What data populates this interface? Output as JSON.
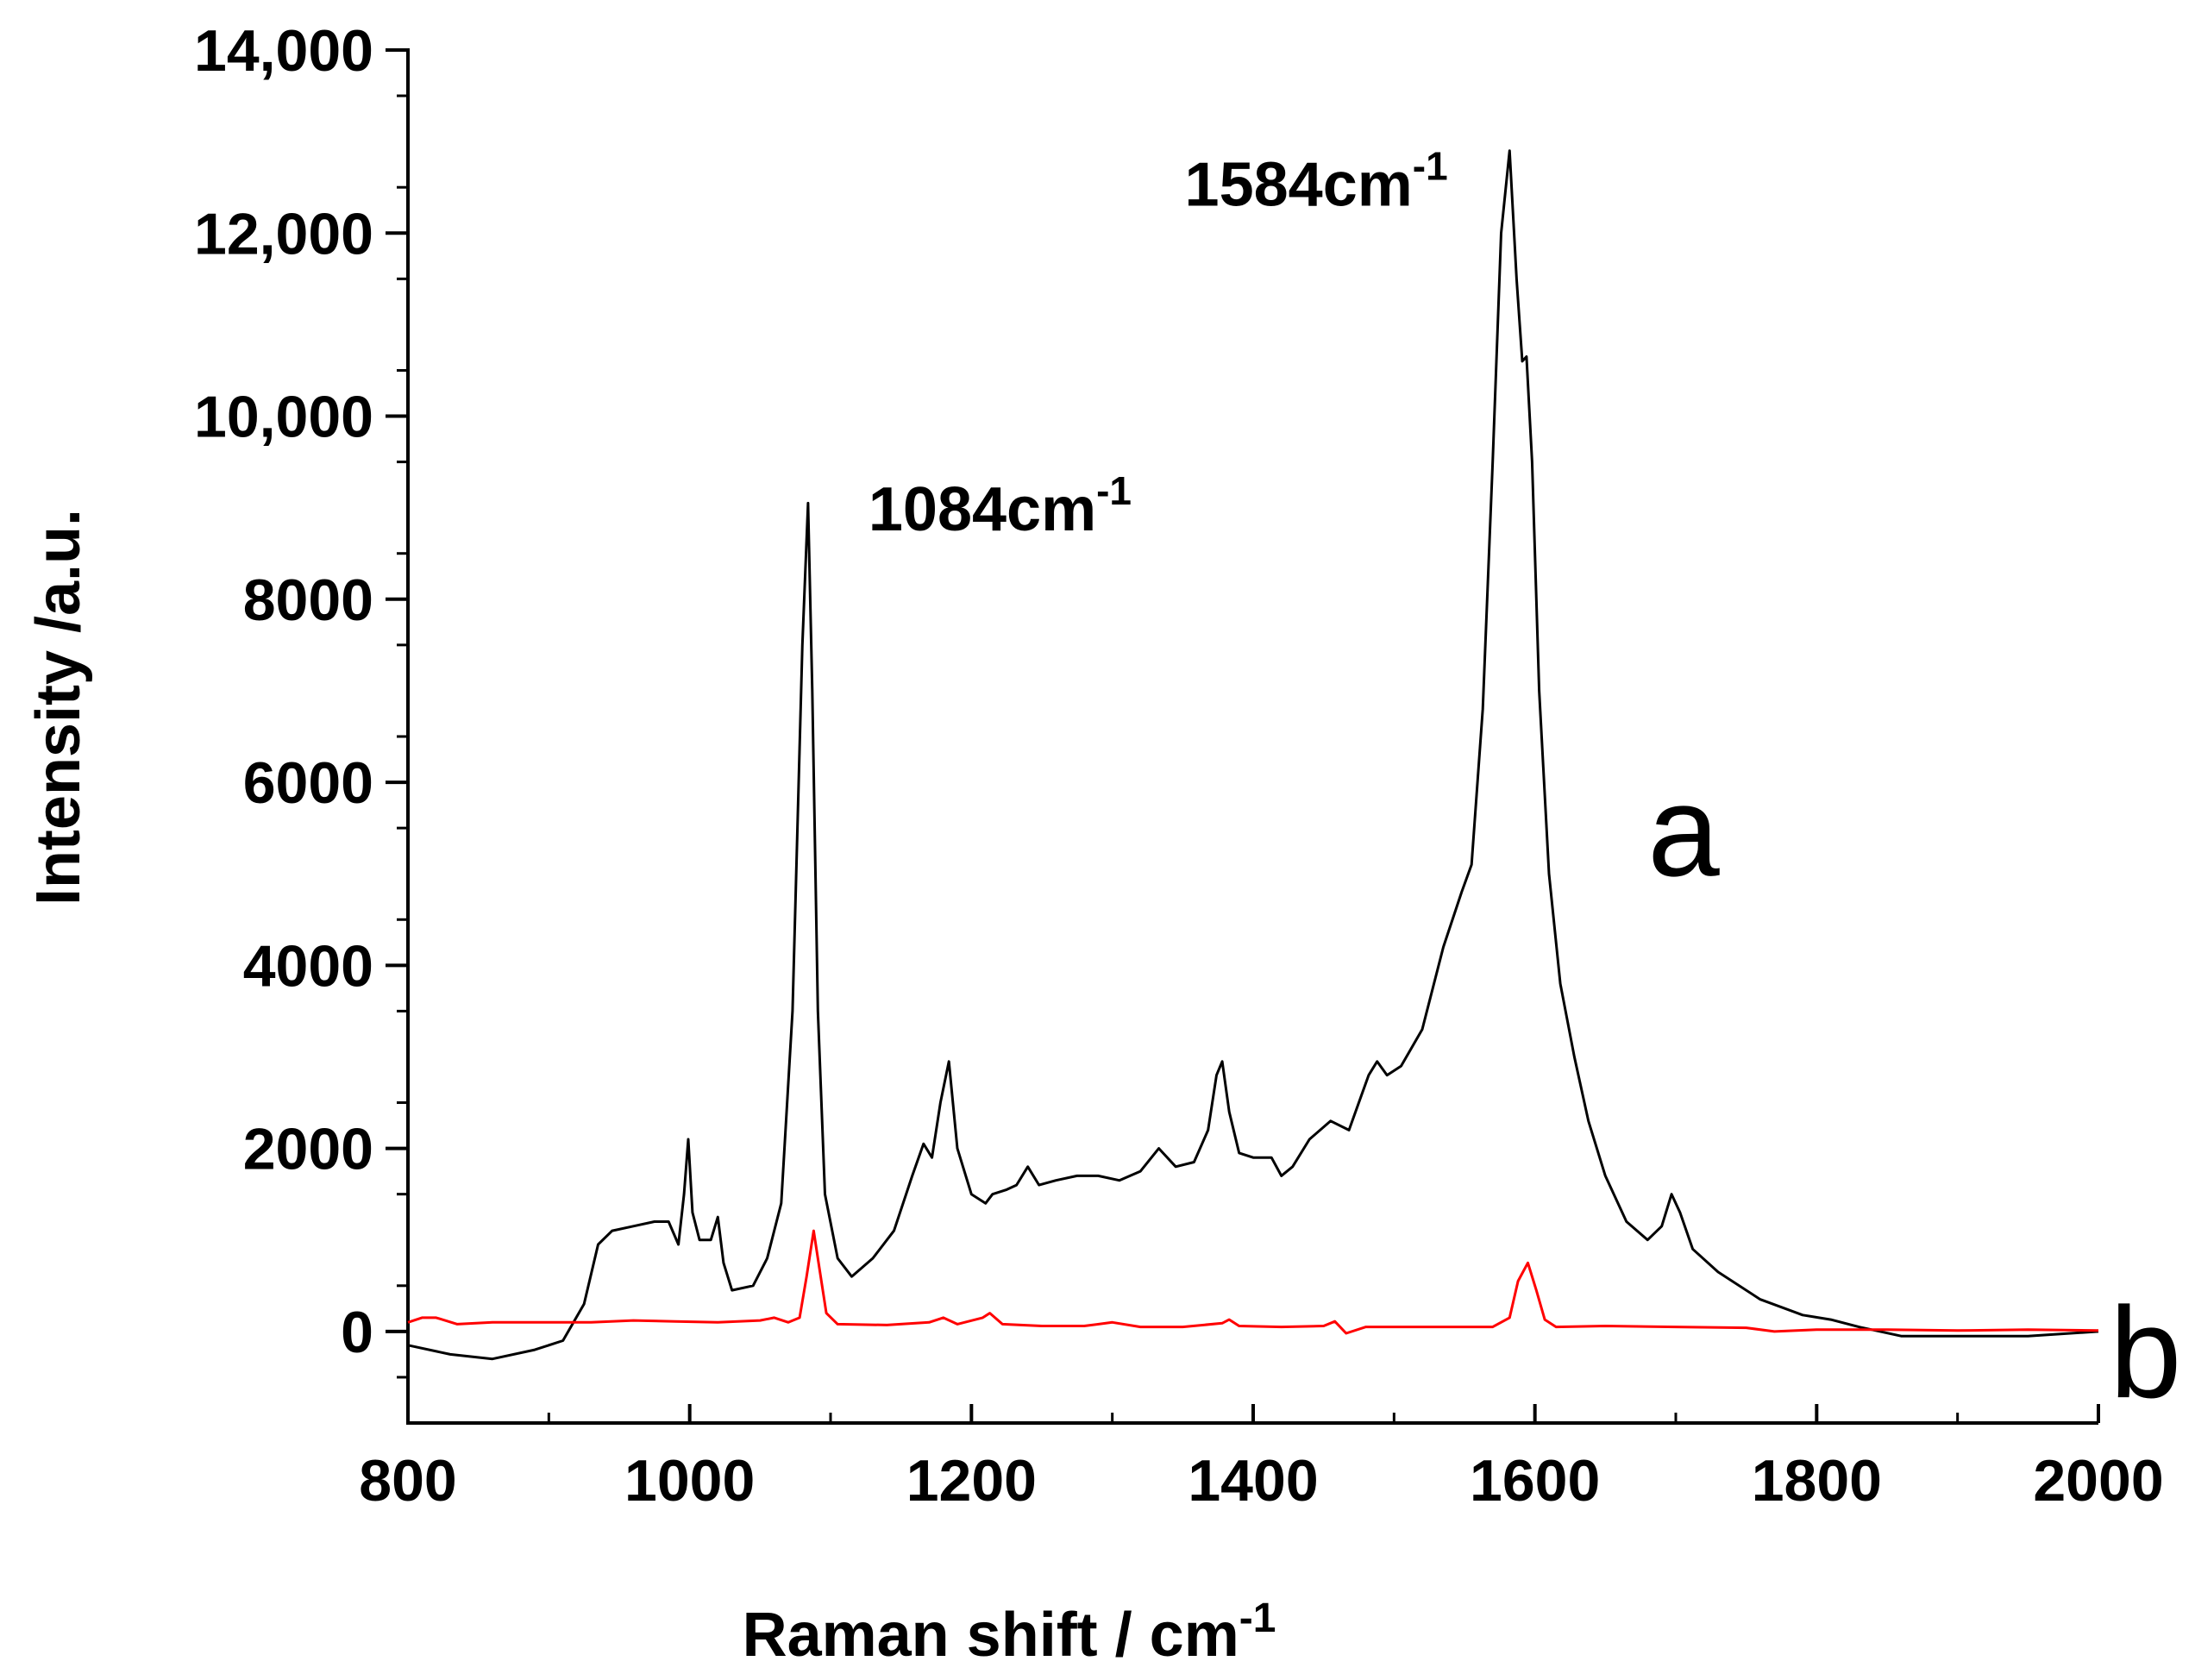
{
  "chart_data": {
    "type": "line",
    "title": "",
    "xlabel": "Raman shift / cm",
    "xlabel_sup": "-1",
    "ylabel": "Intensity /a.u.",
    "xlim": [
      800,
      2000
    ],
    "ylim": [
      -1000,
      14000
    ],
    "xticks": [
      800,
      1000,
      1200,
      1400,
      1600,
      1800,
      2000
    ],
    "xtick_labels": [
      "800",
      "1000",
      "1200",
      "1400",
      "1600",
      "1800",
      "2000"
    ],
    "yticks": [
      0,
      2000,
      4000,
      6000,
      8000,
      10000,
      12000,
      14000
    ],
    "ytick_labels": [
      "0",
      "2000",
      "4000",
      "6000",
      "8000",
      "10,000",
      "12,000",
      "14,000"
    ],
    "annotations": [
      {
        "text": "1084cm",
        "sup": "-1",
        "x": 1084,
        "y": 8750
      },
      {
        "text": "1584cm",
        "sup": "-1",
        "x": 1584,
        "y": 12300
      }
    ],
    "series": [
      {
        "name": "a",
        "color": "#000000",
        "label_at": {
          "x": 1680,
          "y": 5500
        },
        "points": [
          [
            800,
            -150
          ],
          [
            830,
            -250
          ],
          [
            860,
            -300
          ],
          [
            890,
            -200
          ],
          [
            910,
            -100
          ],
          [
            925,
            300
          ],
          [
            935,
            950
          ],
          [
            945,
            1100
          ],
          [
            960,
            1150
          ],
          [
            975,
            1200
          ],
          [
            985,
            1200
          ],
          [
            992,
            950
          ],
          [
            996,
            1500
          ],
          [
            999,
            2100
          ],
          [
            1002,
            1300
          ],
          [
            1007,
            1000
          ],
          [
            1015,
            1000
          ],
          [
            1020,
            1250
          ],
          [
            1024,
            750
          ],
          [
            1030,
            450
          ],
          [
            1045,
            500
          ],
          [
            1055,
            800
          ],
          [
            1065,
            1400
          ],
          [
            1073,
            3500
          ],
          [
            1080,
            7500
          ],
          [
            1084,
            9050
          ],
          [
            1087,
            7000
          ],
          [
            1091,
            3500
          ],
          [
            1096,
            1500
          ],
          [
            1105,
            800
          ],
          [
            1115,
            600
          ],
          [
            1130,
            800
          ],
          [
            1145,
            1100
          ],
          [
            1158,
            1700
          ],
          [
            1166,
            2050
          ],
          [
            1172,
            1900
          ],
          [
            1178,
            2500
          ],
          [
            1184,
            2950
          ],
          [
            1190,
            2000
          ],
          [
            1200,
            1500
          ],
          [
            1210,
            1400
          ],
          [
            1215,
            1500
          ],
          [
            1225,
            1550
          ],
          [
            1232,
            1600
          ],
          [
            1240,
            1800
          ],
          [
            1248,
            1600
          ],
          [
            1260,
            1650
          ],
          [
            1275,
            1700
          ],
          [
            1290,
            1700
          ],
          [
            1305,
            1650
          ],
          [
            1320,
            1750
          ],
          [
            1333,
            2000
          ],
          [
            1345,
            1800
          ],
          [
            1358,
            1850
          ],
          [
            1368,
            2200
          ],
          [
            1374,
            2800
          ],
          [
            1378,
            2950
          ],
          [
            1383,
            2400
          ],
          [
            1390,
            1950
          ],
          [
            1400,
            1900
          ],
          [
            1413,
            1900
          ],
          [
            1420,
            1700
          ],
          [
            1428,
            1800
          ],
          [
            1440,
            2100
          ],
          [
            1455,
            2300
          ],
          [
            1468,
            2200
          ],
          [
            1475,
            2500
          ],
          [
            1482,
            2800
          ],
          [
            1488,
            2950
          ],
          [
            1495,
            2800
          ],
          [
            1505,
            2900
          ],
          [
            1520,
            3300
          ],
          [
            1535,
            4200
          ],
          [
            1548,
            4800
          ],
          [
            1555,
            5100
          ],
          [
            1563,
            6800
          ],
          [
            1570,
            9500
          ],
          [
            1576,
            12000
          ],
          [
            1582,
            12900
          ],
          [
            1587,
            11500
          ],
          [
            1591,
            10600
          ],
          [
            1594,
            10650
          ],
          [
            1598,
            9500
          ],
          [
            1603,
            7000
          ],
          [
            1610,
            5000
          ],
          [
            1618,
            3800
          ],
          [
            1628,
            3000
          ],
          [
            1638,
            2300
          ],
          [
            1650,
            1700
          ],
          [
            1665,
            1200
          ],
          [
            1680,
            1000
          ],
          [
            1690,
            1150
          ],
          [
            1697,
            1500
          ],
          [
            1703,
            1300
          ],
          [
            1712,
            900
          ],
          [
            1730,
            650
          ],
          [
            1760,
            350
          ],
          [
            1790,
            180
          ],
          [
            1810,
            130
          ],
          [
            1830,
            50
          ],
          [
            1860,
            -50
          ],
          [
            1900,
            -50
          ],
          [
            1950,
            -50
          ],
          [
            2000,
            0
          ]
        ]
      },
      {
        "name": "b",
        "color": "#ff0000",
        "label_at": {
          "x": 2008,
          "y": -200
        },
        "points": [
          [
            800,
            100
          ],
          [
            810,
            150
          ],
          [
            820,
            150
          ],
          [
            835,
            80
          ],
          [
            860,
            100
          ],
          [
            900,
            100
          ],
          [
            930,
            100
          ],
          [
            960,
            120
          ],
          [
            990,
            110
          ],
          [
            1020,
            100
          ],
          [
            1050,
            120
          ],
          [
            1060,
            150
          ],
          [
            1070,
            100
          ],
          [
            1078,
            150
          ],
          [
            1083,
            600
          ],
          [
            1088,
            1100
          ],
          [
            1092,
            700
          ],
          [
            1097,
            200
          ],
          [
            1105,
            80
          ],
          [
            1140,
            70
          ],
          [
            1170,
            100
          ],
          [
            1180,
            150
          ],
          [
            1190,
            80
          ],
          [
            1208,
            150
          ],
          [
            1213,
            200
          ],
          [
            1222,
            80
          ],
          [
            1250,
            60
          ],
          [
            1280,
            60
          ],
          [
            1300,
            100
          ],
          [
            1320,
            50
          ],
          [
            1350,
            50
          ],
          [
            1378,
            90
          ],
          [
            1383,
            130
          ],
          [
            1390,
            60
          ],
          [
            1420,
            50
          ],
          [
            1450,
            60
          ],
          [
            1458,
            110
          ],
          [
            1466,
            -20
          ],
          [
            1480,
            50
          ],
          [
            1520,
            50
          ],
          [
            1570,
            50
          ],
          [
            1582,
            150
          ],
          [
            1588,
            550
          ],
          [
            1595,
            750
          ],
          [
            1601,
            450
          ],
          [
            1607,
            130
          ],
          [
            1615,
            50
          ],
          [
            1650,
            60
          ],
          [
            1700,
            50
          ],
          [
            1750,
            40
          ],
          [
            1770,
            0
          ],
          [
            1800,
            20
          ],
          [
            1850,
            20
          ],
          [
            1900,
            10
          ],
          [
            1950,
            20
          ],
          [
            2000,
            10
          ]
        ]
      }
    ]
  }
}
